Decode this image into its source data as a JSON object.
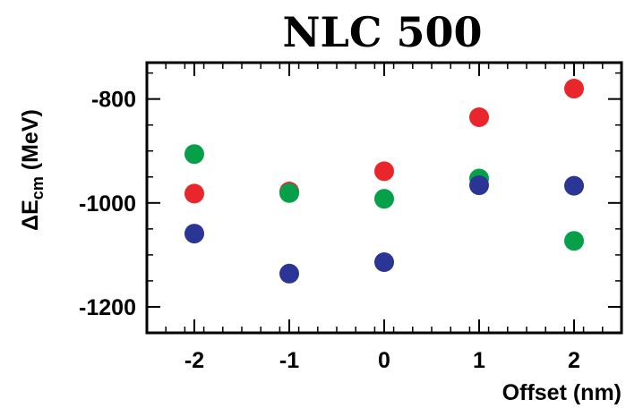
{
  "chart_data": {
    "type": "scatter",
    "title": "NLC 500",
    "xlabel": "Offset (nm)",
    "ylabel": {
      "delta": "Δ",
      "main": "E",
      "subscript": "cm",
      "unit": "(MeV)"
    },
    "xlim": [
      -2.5,
      2.5
    ],
    "ylim": [
      -1250,
      -730
    ],
    "x_ticks": [
      -2,
      -1,
      0,
      1,
      2
    ],
    "x_tick_labels": [
      "-2",
      "-1",
      "0",
      "1",
      "2"
    ],
    "y_ticks": [
      -1200,
      -1000,
      -800
    ],
    "y_tick_labels": [
      "-1200",
      "-1000",
      "-800"
    ],
    "grid": false,
    "series": [
      {
        "color": "#e8262b",
        "points": [
          {
            "x": -2,
            "y": -982
          },
          {
            "x": -1,
            "y": -978
          },
          {
            "x": 0,
            "y": -939
          },
          {
            "x": 1,
            "y": -835
          },
          {
            "x": 2,
            "y": -780
          }
        ]
      },
      {
        "color": "#07a04a",
        "points": [
          {
            "x": -2,
            "y": -906
          },
          {
            "x": -1,
            "y": -981
          },
          {
            "x": 0,
            "y": -992
          },
          {
            "x": 1,
            "y": -953
          },
          {
            "x": 2,
            "y": -1073
          }
        ]
      },
      {
        "color": "#2b3595",
        "points": [
          {
            "x": -2,
            "y": -1059
          },
          {
            "x": -1,
            "y": -1136
          },
          {
            "x": 0,
            "y": -1114
          },
          {
            "x": 1,
            "y": -966
          },
          {
            "x": 2,
            "y": -967
          }
        ]
      }
    ]
  }
}
